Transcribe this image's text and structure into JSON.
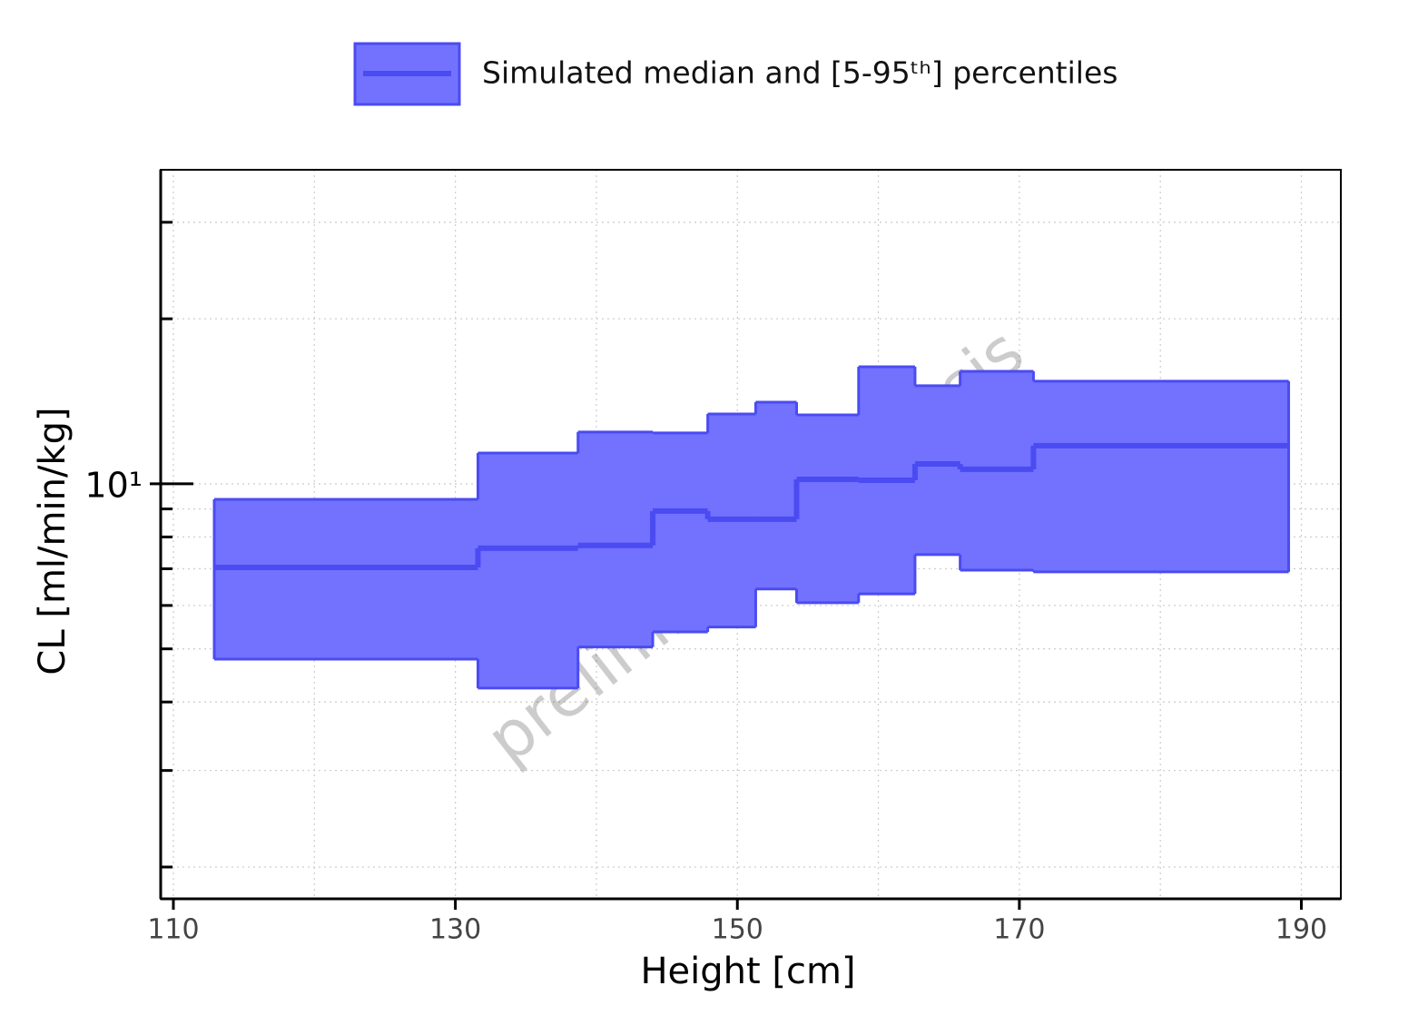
{
  "chart_data": {
    "type": "step_band",
    "legend_label": "Simulated median and [5-95ᵗʰ] percentiles",
    "xlabel": "Height [cm]",
    "ylabel": "CL [ml/min/kg]",
    "annotation": "preliminary analysis",
    "bins": [
      112.9,
      131.6,
      138.7,
      144.0,
      147.9,
      151.3,
      154.2,
      158.6,
      162.6,
      165.8,
      171.0,
      189.1
    ],
    "median": [
      7.04,
      7.63,
      7.72,
      8.92,
      8.62,
      8.62,
      10.19,
      10.15,
      10.87,
      10.63,
      11.74
    ],
    "lower": [
      4.79,
      4.24,
      5.04,
      5.37,
      5.48,
      6.43,
      6.07,
      6.3,
      7.43,
      6.96,
      6.91
    ],
    "upper": [
      9.37,
      11.38,
      12.43,
      12.38,
      13.41,
      14.09,
      13.36,
      16.35,
      15.1,
      16.04,
      15.39
    ],
    "color": "#7272ff",
    "line_color": "#4b4bf2",
    "log_y": true,
    "grid": true,
    "xlim": [
      109.1,
      192.8
    ],
    "ylim": [
      1.75,
      37.4
    ],
    "xticks": [
      110,
      130,
      150,
      170,
      190
    ],
    "xminor": [
      120,
      140,
      160,
      180
    ],
    "yticks": [
      {
        "value": 10,
        "label": "10¹"
      }
    ],
    "yminor": [
      2,
      3,
      4,
      5,
      6,
      7,
      8,
      9,
      20,
      30
    ]
  }
}
